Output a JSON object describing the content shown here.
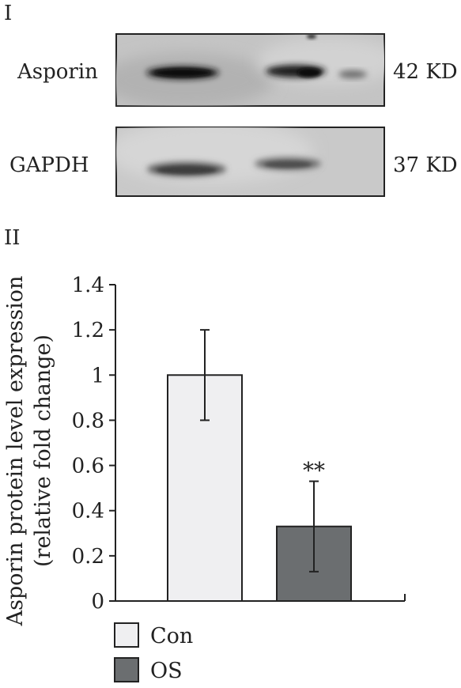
{
  "panel_labels": {
    "top": "I",
    "bottom": "II"
  },
  "blots": [
    {
      "protein": "Asporin",
      "size": "42 KD"
    },
    {
      "protein": "GAPDH",
      "size": "37 KD"
    }
  ],
  "chart_data": {
    "type": "bar",
    "categories": [
      "Con",
      "OS"
    ],
    "values": [
      1.0,
      0.33
    ],
    "error": [
      0.2,
      0.2
    ],
    "annotations": [
      {
        "category": "OS",
        "text": "**"
      }
    ],
    "ylabel_line1": "Asporin protein level expression",
    "ylabel_line2": "(relative fold change)",
    "xlabel": "",
    "ylim": [
      0,
      1.4
    ],
    "yticks": [
      "0",
      "0.2",
      "0.4",
      "0.6",
      "0.8",
      "1",
      "1.2",
      "1.4"
    ],
    "ytick_values": [
      0,
      0.2,
      0.4,
      0.6,
      0.8,
      1.0,
      1.2,
      1.4
    ],
    "colors": {
      "Con": "#efeff1",
      "OS": "#6b6e70"
    },
    "grid": false,
    "legend_placement": "bottom-left",
    "legend": [
      {
        "name": "Con"
      },
      {
        "name": "OS"
      }
    ]
  }
}
